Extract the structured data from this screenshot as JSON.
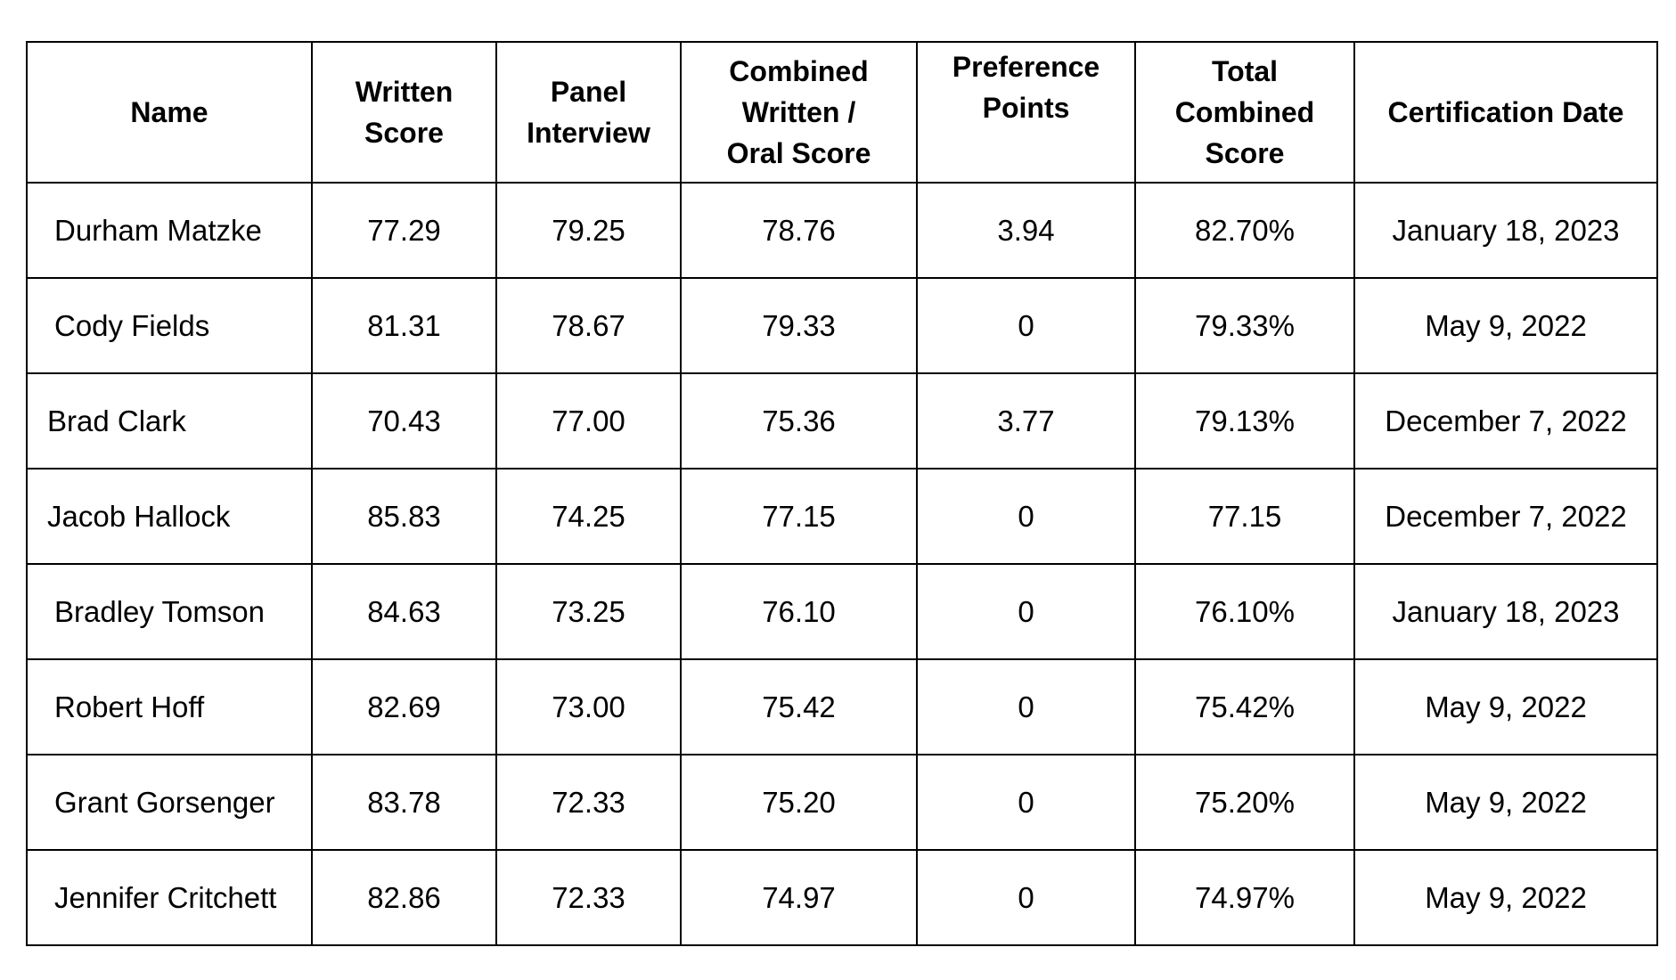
{
  "table": {
    "headers": [
      {
        "key": "name",
        "lines": [
          "Name"
        ]
      },
      {
        "key": "written",
        "lines": [
          "Written",
          "Score"
        ]
      },
      {
        "key": "panel",
        "lines": [
          "Panel",
          "Interview"
        ]
      },
      {
        "key": "combined",
        "lines": [
          "Combined",
          "Written /",
          "Oral Score"
        ]
      },
      {
        "key": "pref",
        "lines": [
          "Preference",
          "Points"
        ]
      },
      {
        "key": "total",
        "lines": [
          "Total",
          "Combined",
          "Score"
        ]
      },
      {
        "key": "cert",
        "lines": [
          "Certification Date"
        ]
      }
    ],
    "rows": [
      {
        "name": "Durham Matzke",
        "written": "77.29",
        "panel": "79.25",
        "combined": "78.76",
        "pref": "3.94",
        "total": "82.70%",
        "cert": "January 18, 2023"
      },
      {
        "name": "Cody Fields",
        "written": "81.31",
        "panel": "78.67",
        "combined": "79.33",
        "pref": "0",
        "total": "79.33%",
        "cert": "May 9, 2022"
      },
      {
        "name": "Brad Clark",
        "written": "70.43",
        "panel": "77.00",
        "combined": "75.36",
        "pref": "3.77",
        "total": "79.13%",
        "cert": "December 7, 2022"
      },
      {
        "name": "Jacob Hallock",
        "written": "85.83",
        "panel": "74.25",
        "combined": "77.15",
        "pref": "0",
        "total": "77.15",
        "cert": "December 7, 2022"
      },
      {
        "name": "Bradley Tomson",
        "written": "84.63",
        "panel": "73.25",
        "combined": "76.10",
        "pref": "0",
        "total": "76.10%",
        "cert": "January 18, 2023"
      },
      {
        "name": "Robert Hoff",
        "written": "82.69",
        "panel": "73.00",
        "combined": "75.42",
        "pref": "0",
        "total": "75.42%",
        "cert": "May 9, 2022"
      },
      {
        "name": "Grant Gorsenger",
        "written": "83.78",
        "panel": "72.33",
        "combined": "75.20",
        "pref": "0",
        "total": "75.20%",
        "cert": "May 9, 2022"
      },
      {
        "name": "Jennifer Critchett",
        "written": "82.86",
        "panel": "72.33",
        "combined": "74.97",
        "pref": "0",
        "total": "74.97%",
        "cert": "May 9, 2022"
      }
    ]
  }
}
